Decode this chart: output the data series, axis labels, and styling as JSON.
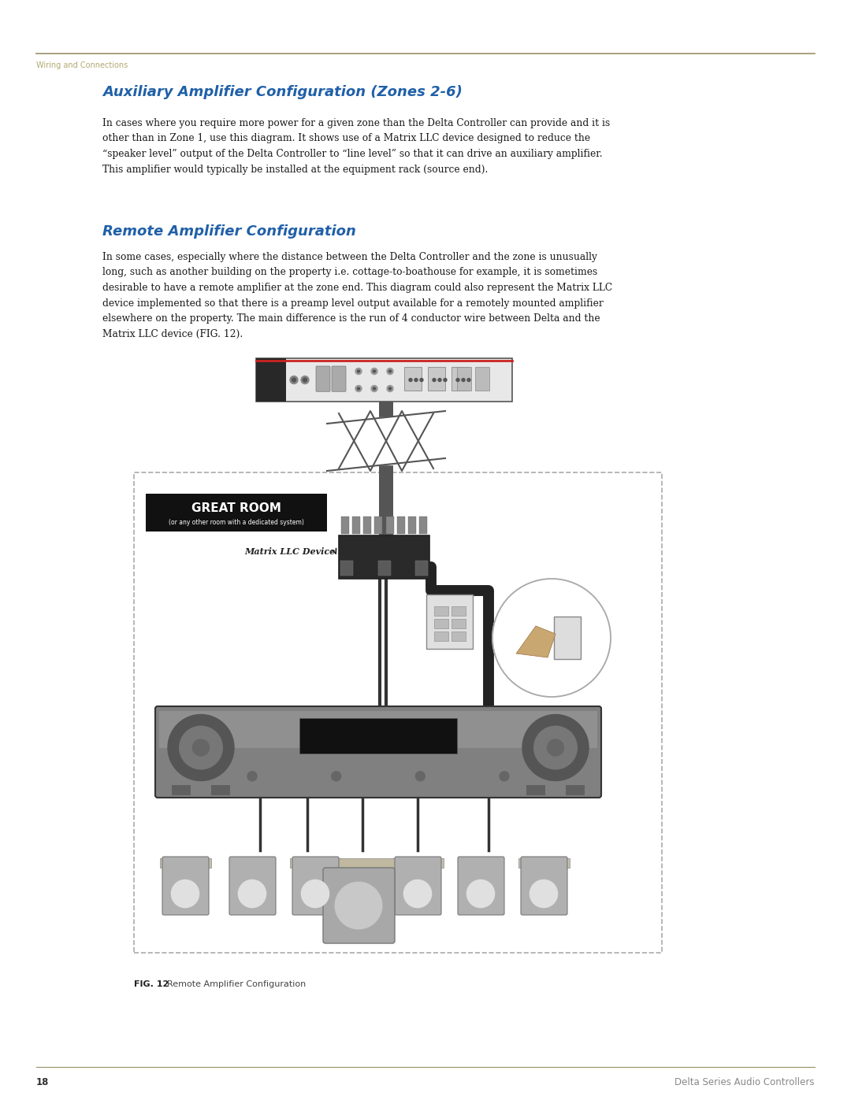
{
  "bg_color": "#ffffff",
  "page_width": 10.8,
  "page_height": 13.97,
  "header_line_color": "#9a9068",
  "header_text": "Wiring and Connections",
  "header_text_color": "#b0a870",
  "title1": "Auxiliary Amplifier Configuration (Zones 2-6)",
  "title1_color": "#2060a8",
  "title2": "Remote Amplifier Configuration",
  "title2_color": "#2060a8",
  "body_color": "#1a1a1a",
  "body1_lines": [
    "In cases where you require more power for a given zone than the Delta Controller can provide and it is",
    "other than in Zone 1, use this diagram. It shows use of a Matrix LLC device designed to reduce the",
    "“speaker level” output of the Delta Controller to “line level” so that it can drive an auxiliary amplifier.",
    "This amplifier would typically be installed at the equipment rack (source end)."
  ],
  "body2_lines": [
    "In some cases, especially where the distance between the Delta Controller and the zone is unusually",
    "long, such as another building on the property i.e. cottage-to-boathouse for example, it is sometimes",
    "desirable to have a remote amplifier at the zone end. This diagram could also represent the Matrix LLC",
    "device implemented so that there is a preamp level output available for a remotely mounted amplifier",
    "elsewhere on the property. The main difference is the run of 4 conductor wire between Delta and the",
    "Matrix LLC device (FIG. 12)."
  ],
  "fig_caption_bold": "FIG. 12",
  "fig_caption_rest": "  Remote Amplifier Configuration",
  "footer_page": "18",
  "footer_right": "Delta Series Audio Controllers",
  "footer_line_color": "#9a9068",
  "great_room_label": "GREAT ROOM",
  "great_room_sub": "(or any other room with a dedicated system)",
  "matrix_label": "Matrix LLC Device"
}
